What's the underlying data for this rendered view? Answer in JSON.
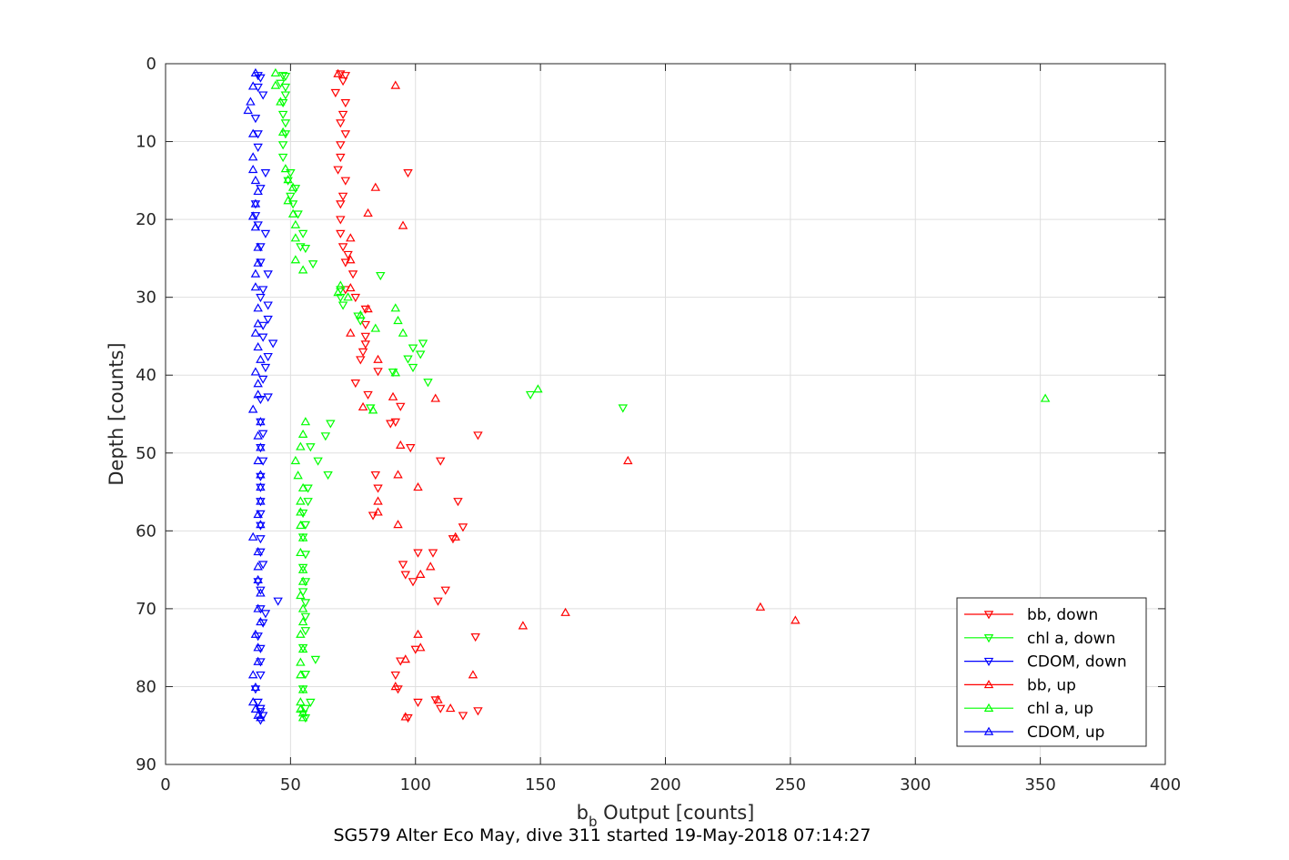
{
  "chart_data": {
    "type": "scatter",
    "title": "",
    "caption": "SG579 Alter Eco May, dive 311 started 19-May-2018 07:14:27",
    "xlabel_base": "b",
    "xlabel_sub": "b",
    "xlabel_rest": " Output [counts]",
    "ylabel": "Depth [counts]",
    "xlim": [
      0,
      400
    ],
    "ylim": [
      0,
      90
    ],
    "y_reversed": true,
    "grid": true,
    "legend_position": "bottom-right",
    "x_ticks": [
      "0",
      "50",
      "100",
      "150",
      "200",
      "250",
      "300",
      "350",
      "400"
    ],
    "y_ticks": [
      "0",
      "10",
      "20",
      "30",
      "40",
      "50",
      "60",
      "70",
      "80",
      "90"
    ],
    "colors": {
      "bb": "#ff0000",
      "chl": "#00ff00",
      "cdom": "#0000ff",
      "axis": "#262626",
      "grid": "#dfdfdf"
    },
    "series": [
      {
        "name": "bb, down",
        "color": "#ff0000",
        "marker": "triangle-down",
        "points": [
          [
            70,
            1.3
          ],
          [
            72,
            1.5
          ],
          [
            71,
            2.2
          ],
          [
            68,
            3.7
          ],
          [
            72,
            5
          ],
          [
            71,
            6.5
          ],
          [
            70,
            7.6
          ],
          [
            72,
            9
          ],
          [
            70,
            10.4
          ],
          [
            70,
            12
          ],
          [
            97,
            14
          ],
          [
            69,
            13.6
          ],
          [
            72,
            15
          ],
          [
            71,
            17
          ],
          [
            70,
            18
          ],
          [
            70,
            20
          ],
          [
            70,
            21.8
          ],
          [
            71,
            23.5
          ],
          [
            73,
            24.5
          ],
          [
            72,
            25.5
          ],
          [
            75,
            27
          ],
          [
            72,
            29
          ],
          [
            76,
            30
          ],
          [
            80,
            31.5
          ],
          [
            80,
            33.5
          ],
          [
            80,
            35
          ],
          [
            80,
            36
          ],
          [
            79,
            37
          ],
          [
            78,
            38
          ],
          [
            85,
            39.5
          ],
          [
            76,
            41
          ],
          [
            81,
            42.5
          ],
          [
            94,
            44
          ],
          [
            92,
            46
          ],
          [
            90,
            46.2
          ],
          [
            125,
            47.7
          ],
          [
            98,
            49.3
          ],
          [
            110,
            51
          ],
          [
            84,
            52.8
          ],
          [
            85,
            54.5
          ],
          [
            117,
            56.2
          ],
          [
            83,
            58
          ],
          [
            119,
            59.5
          ],
          [
            115,
            61
          ],
          [
            107,
            62.8
          ],
          [
            101,
            62.8
          ],
          [
            95,
            64.3
          ],
          [
            96,
            65.6
          ],
          [
            99,
            66.5
          ],
          [
            112,
            67.6
          ],
          [
            109,
            69
          ],
          [
            124,
            73.6
          ],
          [
            100,
            75.2
          ],
          [
            94,
            76.7
          ],
          [
            92,
            78.5
          ],
          [
            93,
            80.3
          ],
          [
            101,
            82
          ],
          [
            108,
            81.7
          ],
          [
            110,
            82.8
          ],
          [
            119,
            83.7
          ],
          [
            125,
            83.1
          ],
          [
            97,
            84
          ]
        ]
      },
      {
        "name": "chl a, down",
        "color": "#00ff00",
        "marker": "triangle-down",
        "points": [
          [
            47,
            1.5
          ],
          [
            48,
            1.6
          ],
          [
            46,
            2.5
          ],
          [
            48,
            3
          ],
          [
            48,
            4
          ],
          [
            47,
            5
          ],
          [
            47,
            6.5
          ],
          [
            48,
            7.6
          ],
          [
            48,
            9
          ],
          [
            47,
            10.4
          ],
          [
            47,
            12
          ],
          [
            50,
            14
          ],
          [
            49,
            15
          ],
          [
            52,
            16
          ],
          [
            50,
            17
          ],
          [
            51,
            18
          ],
          [
            53,
            19.3
          ],
          [
            55,
            21.8
          ],
          [
            54,
            23.5
          ],
          [
            56,
            23.7
          ],
          [
            59,
            25.7
          ],
          [
            86,
            27.2
          ],
          [
            70,
            29
          ],
          [
            70,
            30
          ],
          [
            71,
            31
          ],
          [
            77,
            32.4
          ],
          [
            78,
            33
          ],
          [
            103,
            35.9
          ],
          [
            99,
            36.5
          ],
          [
            102,
            37.3
          ],
          [
            97,
            37.9
          ],
          [
            99,
            39
          ],
          [
            91,
            39.6
          ],
          [
            105,
            40.9
          ],
          [
            146,
            42.5
          ],
          [
            183,
            44.2
          ],
          [
            82,
            44.2
          ],
          [
            66,
            46.2
          ],
          [
            64,
            47.8
          ],
          [
            58,
            49.2
          ],
          [
            61,
            51
          ],
          [
            65,
            52.8
          ],
          [
            57,
            54.5
          ],
          [
            57,
            56.2
          ],
          [
            55,
            57.7
          ],
          [
            56,
            59.2
          ],
          [
            55,
            60.8
          ],
          [
            56,
            63
          ],
          [
            55,
            64.7
          ],
          [
            56,
            66.5
          ],
          [
            55,
            67.8
          ],
          [
            56,
            69.2
          ],
          [
            56,
            71
          ],
          [
            56,
            72.8
          ],
          [
            55,
            75
          ],
          [
            60,
            76.5
          ],
          [
            56,
            78.4
          ],
          [
            55,
            80.3
          ],
          [
            58,
            82
          ],
          [
            56,
            82.8
          ],
          [
            55,
            83.5
          ],
          [
            56,
            84
          ]
        ]
      },
      {
        "name": "CDOM, down",
        "color": "#0000ff",
        "marker": "triangle-down",
        "points": [
          [
            37,
            1.5
          ],
          [
            38,
            1.8
          ],
          [
            37,
            3
          ],
          [
            39,
            4
          ],
          [
            36,
            7
          ],
          [
            37,
            9
          ],
          [
            37,
            10.7
          ],
          [
            40,
            14
          ],
          [
            38,
            16
          ],
          [
            36,
            18
          ],
          [
            36,
            19.5
          ],
          [
            37,
            20.7
          ],
          [
            40,
            21.8
          ],
          [
            38,
            23.5
          ],
          [
            38,
            25.5
          ],
          [
            41,
            27
          ],
          [
            39,
            29
          ],
          [
            38,
            30
          ],
          [
            41,
            31
          ],
          [
            41,
            32.8
          ],
          [
            39,
            33.6
          ],
          [
            39,
            35.1
          ],
          [
            43,
            35.9
          ],
          [
            41,
            37.6
          ],
          [
            40,
            39
          ],
          [
            39,
            40.5
          ],
          [
            41,
            42.8
          ],
          [
            38,
            43.1
          ],
          [
            38,
            46
          ],
          [
            39,
            47.5
          ],
          [
            38,
            49.3
          ],
          [
            39,
            51
          ],
          [
            38,
            53
          ],
          [
            38,
            54.4
          ],
          [
            38,
            56.2
          ],
          [
            38,
            57.8
          ],
          [
            38,
            59.3
          ],
          [
            38,
            61
          ],
          [
            38,
            62.7
          ],
          [
            39,
            64.3
          ],
          [
            37,
            66.5
          ],
          [
            38,
            67.6
          ],
          [
            45,
            69
          ],
          [
            38,
            70
          ],
          [
            40,
            70.6
          ],
          [
            39,
            71.8
          ],
          [
            37,
            73.5
          ],
          [
            38,
            75.1
          ],
          [
            38,
            76.8
          ],
          [
            38,
            78.5
          ],
          [
            36,
            80.3
          ],
          [
            37,
            82
          ],
          [
            38,
            82.8
          ],
          [
            38,
            83.2
          ],
          [
            39,
            83.7
          ],
          [
            38,
            84.3
          ]
        ]
      },
      {
        "name": "bb, up",
        "color": "#ff0000",
        "marker": "triangle-up",
        "points": [
          [
            69,
            1.3
          ],
          [
            92,
            2.8
          ],
          [
            84,
            15.9
          ],
          [
            81,
            19.2
          ],
          [
            95,
            20.8
          ],
          [
            74,
            22.4
          ],
          [
            74,
            25.2
          ],
          [
            74,
            28.8
          ],
          [
            81,
            31.5
          ],
          [
            74,
            34.6
          ],
          [
            85,
            38
          ],
          [
            91,
            42.8
          ],
          [
            108,
            43
          ],
          [
            79,
            44.1
          ],
          [
            94,
            49
          ],
          [
            185,
            51
          ],
          [
            93,
            52.8
          ],
          [
            101,
            54.4
          ],
          [
            85,
            56.2
          ],
          [
            85,
            57.6
          ],
          [
            93,
            59.2
          ],
          [
            116,
            60.8
          ],
          [
            106,
            64.6
          ],
          [
            102,
            65.6
          ],
          [
            238,
            69.8
          ],
          [
            160,
            70.5
          ],
          [
            252,
            71.5
          ],
          [
            143,
            72.2
          ],
          [
            101,
            73.3
          ],
          [
            102,
            75
          ],
          [
            96,
            76.5
          ],
          [
            123,
            78.5
          ],
          [
            92,
            80
          ],
          [
            109,
            81.7
          ],
          [
            114,
            82.8
          ],
          [
            96,
            83.9
          ]
        ]
      },
      {
        "name": "chl a, up",
        "color": "#00ff00",
        "marker": "triangle-up",
        "points": [
          [
            44,
            1.2
          ],
          [
            44,
            2.8
          ],
          [
            46,
            4.9
          ],
          [
            47,
            8.8
          ],
          [
            48,
            13.5
          ],
          [
            49,
            14.9
          ],
          [
            51,
            15.9
          ],
          [
            49,
            17.6
          ],
          [
            51,
            19.3
          ],
          [
            52,
            20.7
          ],
          [
            52,
            22.4
          ],
          [
            52,
            25.2
          ],
          [
            55,
            26.5
          ],
          [
            70,
            28.5
          ],
          [
            69,
            29.4
          ],
          [
            73,
            30
          ],
          [
            78,
            32.3
          ],
          [
            84,
            34
          ],
          [
            92,
            31.4
          ],
          [
            93,
            33
          ],
          [
            95,
            34.6
          ],
          [
            92,
            39.7
          ],
          [
            149,
            41.8
          ],
          [
            352,
            43
          ],
          [
            83,
            44.5
          ],
          [
            56,
            46
          ],
          [
            55,
            47.6
          ],
          [
            54,
            49.2
          ],
          [
            52,
            51
          ],
          [
            53,
            52.9
          ],
          [
            55,
            54.5
          ],
          [
            54,
            56.2
          ],
          [
            54,
            57.6
          ],
          [
            54,
            59.3
          ],
          [
            55,
            60.9
          ],
          [
            54,
            62.8
          ],
          [
            55,
            65
          ],
          [
            55,
            66.5
          ],
          [
            54,
            68.3
          ],
          [
            55,
            70
          ],
          [
            55,
            71.7
          ],
          [
            54,
            73.3
          ],
          [
            55,
            75.2
          ],
          [
            54,
            76.9
          ],
          [
            54,
            78.5
          ],
          [
            55,
            80.4
          ],
          [
            54,
            82
          ],
          [
            54,
            82.9
          ],
          [
            55,
            83.4
          ],
          [
            55,
            84
          ]
        ]
      },
      {
        "name": "CDOM, up",
        "color": "#0000ff",
        "marker": "triangle-up",
        "points": [
          [
            36,
            1.2
          ],
          [
            35,
            2.9
          ],
          [
            34,
            4.9
          ],
          [
            33,
            6
          ],
          [
            35,
            9
          ],
          [
            35,
            12
          ],
          [
            35,
            13.6
          ],
          [
            36,
            15
          ],
          [
            37,
            16.4
          ],
          [
            36,
            18
          ],
          [
            35,
            19.6
          ],
          [
            36,
            21
          ],
          [
            37,
            23.6
          ],
          [
            37,
            25.6
          ],
          [
            36,
            27
          ],
          [
            36,
            28.7
          ],
          [
            37,
            31.4
          ],
          [
            37,
            33.4
          ],
          [
            36,
            34.6
          ],
          [
            37,
            36.4
          ],
          [
            38,
            38
          ],
          [
            36,
            39.6
          ],
          [
            37,
            41.1
          ],
          [
            37,
            42.5
          ],
          [
            35,
            44.4
          ],
          [
            38,
            46
          ],
          [
            37,
            47.8
          ],
          [
            38,
            49.3
          ],
          [
            37,
            51
          ],
          [
            38,
            52.8
          ],
          [
            38,
            54.4
          ],
          [
            38,
            56.2
          ],
          [
            37,
            57.9
          ],
          [
            38,
            59.2
          ],
          [
            35,
            60.8
          ],
          [
            37,
            62.7
          ],
          [
            37,
            64.6
          ],
          [
            37,
            66.3
          ],
          [
            38,
            68
          ],
          [
            37,
            70
          ],
          [
            38,
            71.7
          ],
          [
            36,
            73.3
          ],
          [
            37,
            75
          ],
          [
            37,
            76.8
          ],
          [
            35,
            78.5
          ],
          [
            36,
            80.1
          ],
          [
            35,
            82
          ],
          [
            36,
            82.9
          ],
          [
            37,
            83.7
          ],
          [
            38,
            84
          ]
        ]
      }
    ]
  }
}
